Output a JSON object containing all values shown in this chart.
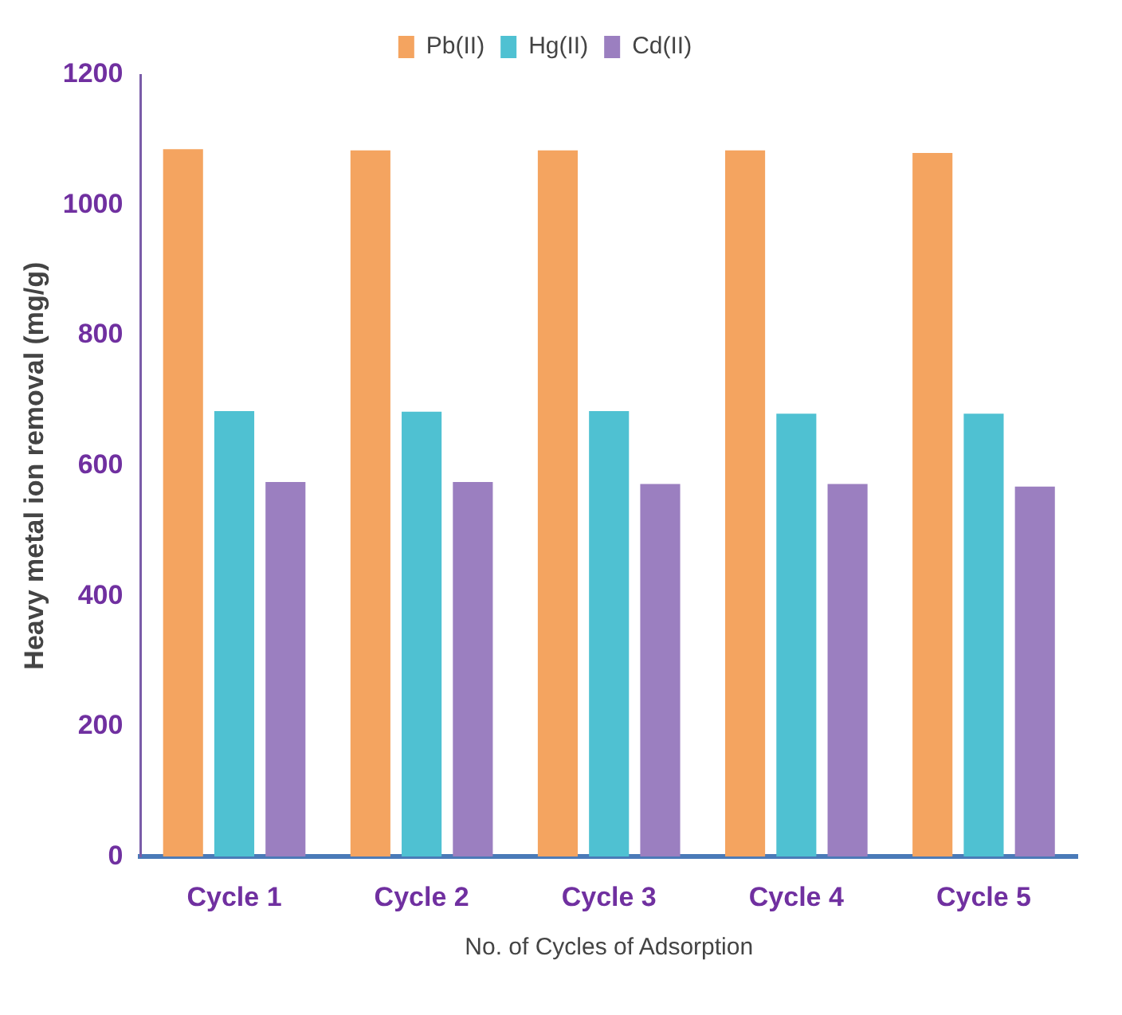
{
  "chart_data": {
    "type": "bar",
    "xlabel": "No. of Cycles of Adsorption",
    "ylabel": "Heavy metal ion removal (mg/g)",
    "categories": [
      "Cycle 1",
      "Cycle 2",
      "Cycle 3",
      "Cycle 4",
      "Cycle 5"
    ],
    "series": [
      {
        "name": "Pb(II)",
        "color": "#f4a460",
        "values": [
          1086,
          1084,
          1084,
          1084,
          1080
        ]
      },
      {
        "name": "Hg(II)",
        "color": "#4fc1d2",
        "values": [
          684,
          683,
          684,
          680,
          680
        ]
      },
      {
        "name": "Cd(II)",
        "color": "#9b7fc0",
        "values": [
          575,
          575,
          572,
          572,
          568
        ]
      }
    ],
    "ylim": [
      0,
      1200
    ],
    "yticks": [
      0,
      200,
      400,
      600,
      800,
      1000,
      1200
    ],
    "grid": false,
    "legend": "top"
  }
}
